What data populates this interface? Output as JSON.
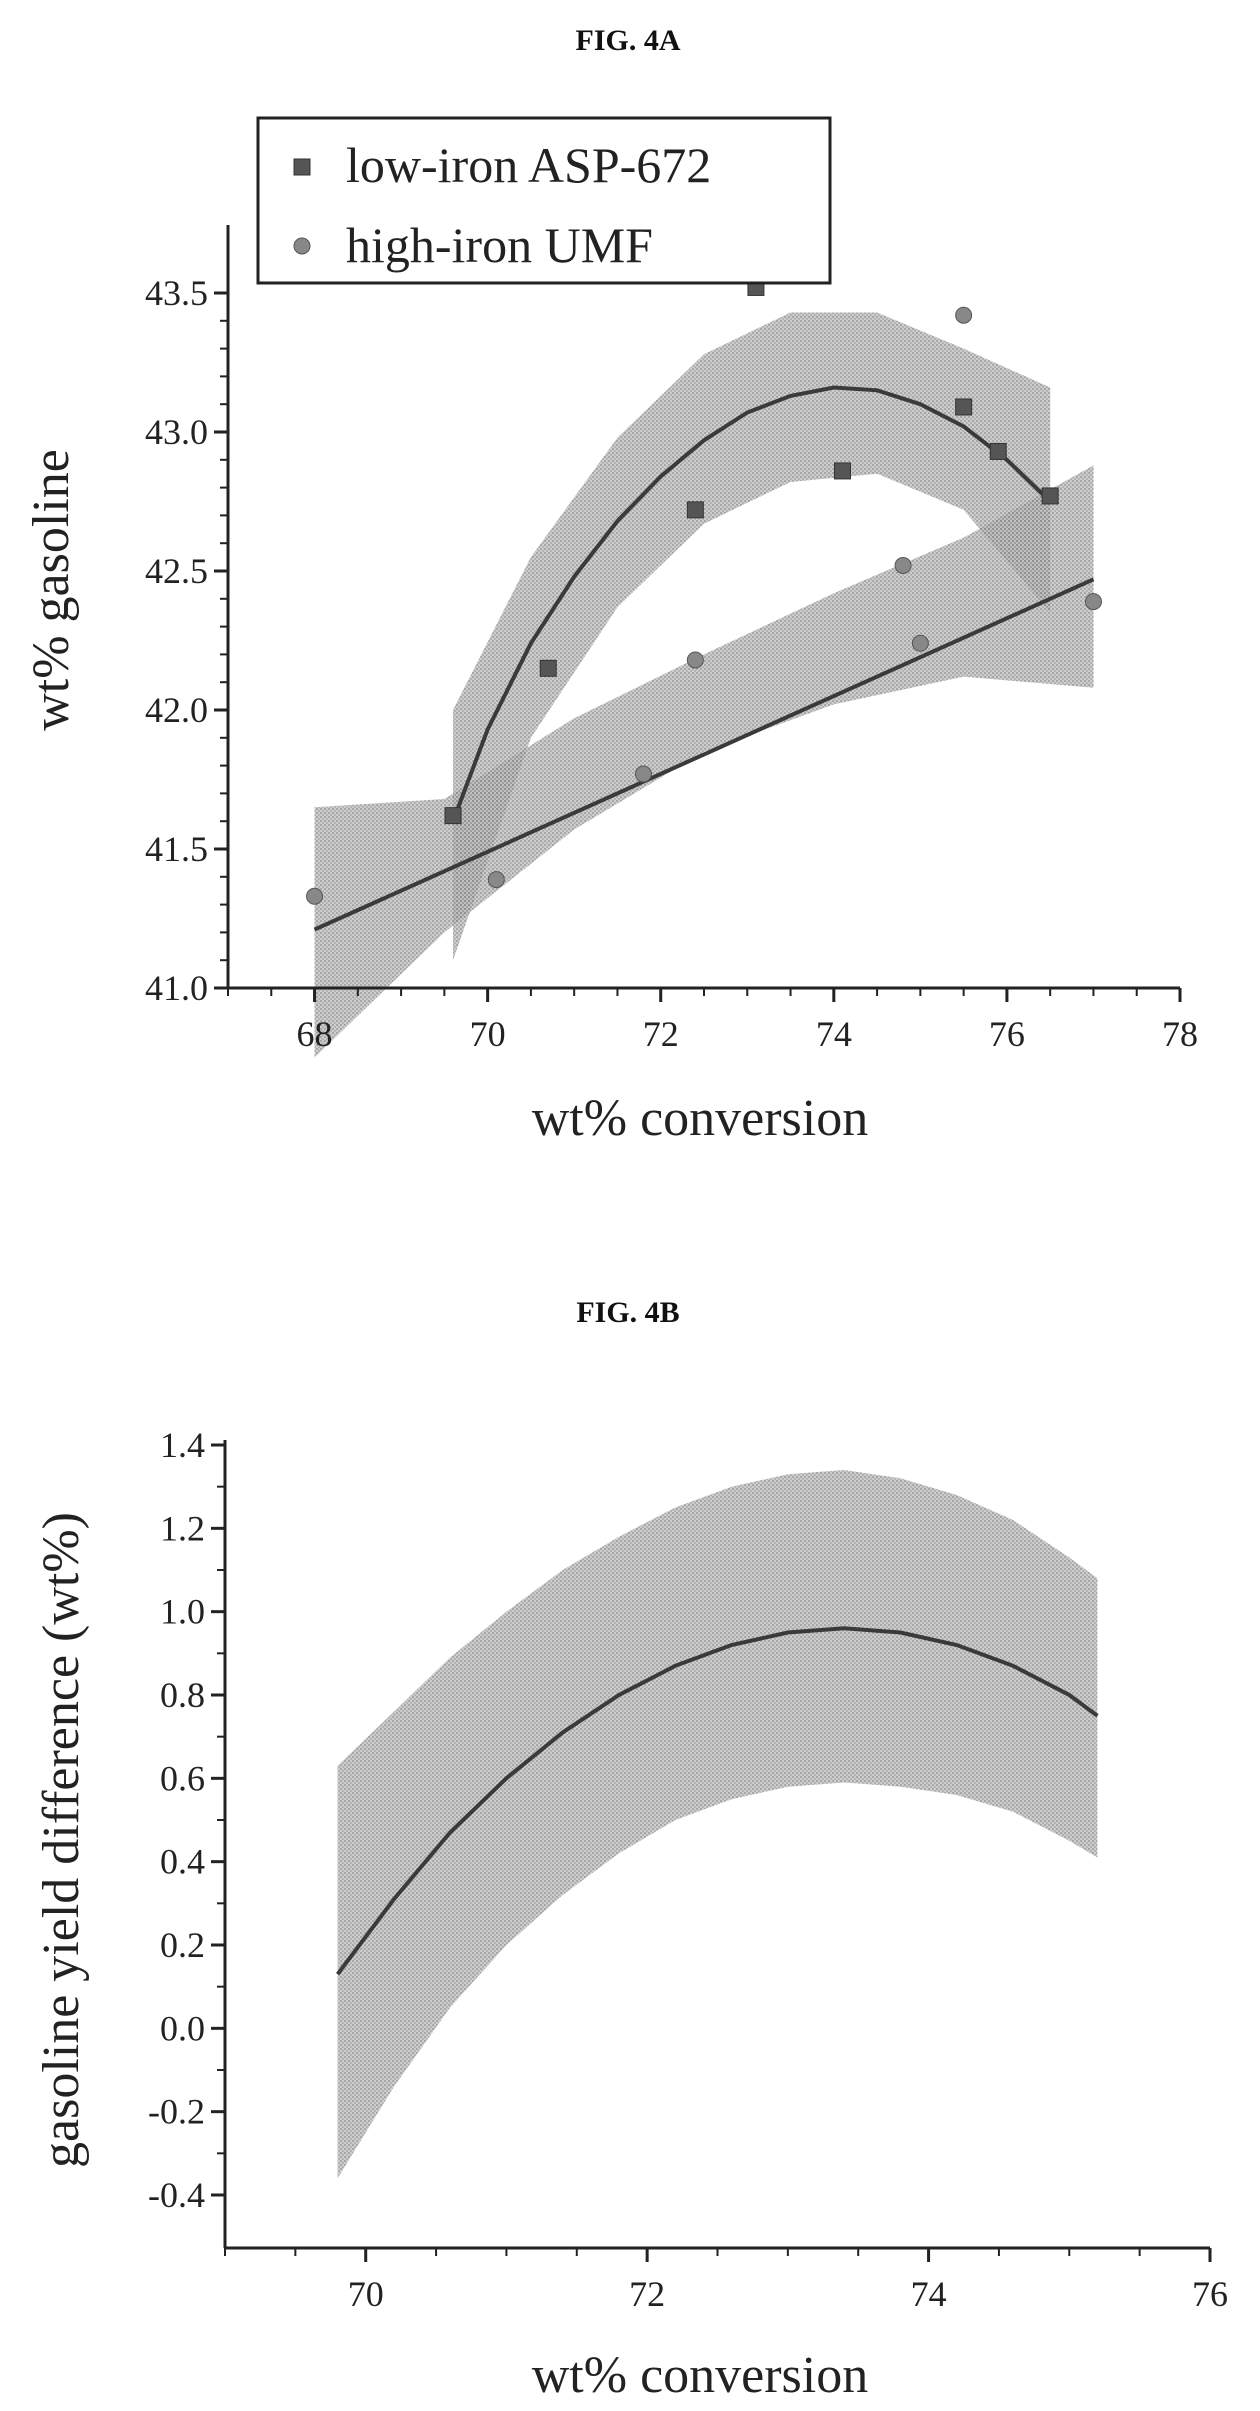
{
  "chart_data": [
    {
      "type": "scatter",
      "title": "FIG. 4A",
      "xlabel": "wt% conversion",
      "ylabel": "wt% gasoline",
      "xlim": [
        67,
        78
      ],
      "ylim": [
        41.0,
        43.75
      ],
      "xticks": [
        "68",
        "70",
        "72",
        "74",
        "76",
        "78"
      ],
      "yticks": [
        "41.0",
        "41.5",
        "42.0",
        "42.5",
        "43.0",
        "43.5"
      ],
      "legend": {
        "placement": "top-left"
      },
      "series": [
        {
          "name": "low-iron ASP-672",
          "marker": "square",
          "points": [
            [
              69.6,
              41.62
            ],
            [
              70.7,
              42.15
            ],
            [
              72.4,
              42.72
            ],
            [
              73.1,
              43.52
            ],
            [
              74.1,
              42.86
            ],
            [
              75.5,
              43.09
            ],
            [
              75.9,
              42.93
            ],
            [
              76.5,
              42.77
            ]
          ],
          "fit": "quadratic",
          "fit_curve": [
            [
              69.6,
              41.6
            ],
            [
              70.0,
              41.93
            ],
            [
              70.5,
              42.24
            ],
            [
              71.0,
              42.48
            ],
            [
              71.5,
              42.68
            ],
            [
              72.0,
              42.84
            ],
            [
              72.5,
              42.97
            ],
            [
              73.0,
              43.07
            ],
            [
              73.5,
              43.13
            ],
            [
              74.0,
              43.16
            ],
            [
              74.5,
              43.15
            ],
            [
              75.0,
              43.1
            ],
            [
              75.5,
              43.02
            ],
            [
              76.0,
              42.9
            ],
            [
              76.5,
              42.75
            ]
          ],
          "band_upper": [
            [
              69.6,
              42.0
            ],
            [
              70.5,
              42.55
            ],
            [
              71.5,
              42.98
            ],
            [
              72.5,
              43.28
            ],
            [
              73.5,
              43.43
            ],
            [
              74.5,
              43.43
            ],
            [
              75.5,
              43.3
            ],
            [
              76.5,
              43.16
            ]
          ],
          "band_lower": [
            [
              69.6,
              41.1
            ],
            [
              70.5,
              41.9
            ],
            [
              71.5,
              42.37
            ],
            [
              72.5,
              42.67
            ],
            [
              73.5,
              42.82
            ],
            [
              74.5,
              42.85
            ],
            [
              75.5,
              42.72
            ],
            [
              76.5,
              42.35
            ]
          ]
        },
        {
          "name": "high-iron UMF",
          "marker": "circle",
          "points": [
            [
              68.0,
              41.33
            ],
            [
              70.1,
              41.39
            ],
            [
              71.8,
              41.77
            ],
            [
              72.4,
              42.18
            ],
            [
              74.8,
              42.52
            ],
            [
              75.0,
              42.24
            ],
            [
              75.5,
              43.42
            ],
            [
              77.0,
              42.39
            ]
          ],
          "fit": "linear",
          "fit_curve": [
            [
              68.0,
              41.21
            ],
            [
              77.0,
              42.47
            ]
          ],
          "band_upper": [
            [
              68.0,
              41.65
            ],
            [
              69.5,
              41.68
            ],
            [
              71.0,
              41.97
            ],
            [
              72.5,
              42.2
            ],
            [
              74.0,
              42.42
            ],
            [
              75.5,
              42.62
            ],
            [
              77.0,
              42.88
            ]
          ],
          "band_lower": [
            [
              68.0,
              40.75
            ],
            [
              69.5,
              41.2
            ],
            [
              71.0,
              41.57
            ],
            [
              72.5,
              41.85
            ],
            [
              74.0,
              42.02
            ],
            [
              75.5,
              42.12
            ],
            [
              77.0,
              42.08
            ]
          ]
        }
      ]
    },
    {
      "type": "line",
      "title": "FIG. 4B",
      "xlabel": "wt% conversion",
      "ylabel": "gasoline yield difference (wt%)",
      "xlim": [
        69,
        76
      ],
      "ylim": [
        -0.5,
        1.4
      ],
      "xticks": [
        "70",
        "72",
        "74",
        "76"
      ],
      "yticks": [
        "-0.4",
        "-0.2",
        "0.0",
        "0.2",
        "0.4",
        "0.6",
        "0.8",
        "1.0",
        "1.2",
        "1.4"
      ],
      "series": [
        {
          "curve": [
            [
              69.8,
              0.13
            ],
            [
              70.2,
              0.31
            ],
            [
              70.6,
              0.47
            ],
            [
              71.0,
              0.6
            ],
            [
              71.4,
              0.71
            ],
            [
              71.8,
              0.8
            ],
            [
              72.2,
              0.87
            ],
            [
              72.6,
              0.92
            ],
            [
              73.0,
              0.95
            ],
            [
              73.4,
              0.96
            ],
            [
              73.8,
              0.95
            ],
            [
              74.2,
              0.92
            ],
            [
              74.6,
              0.87
            ],
            [
              75.0,
              0.8
            ],
            [
              75.2,
              0.75
            ]
          ],
          "band_upper": [
            [
              69.8,
              0.63
            ],
            [
              70.2,
              0.76
            ],
            [
              70.6,
              0.89
            ],
            [
              71.0,
              1.0
            ],
            [
              71.4,
              1.1
            ],
            [
              71.8,
              1.18
            ],
            [
              72.2,
              1.25
            ],
            [
              72.6,
              1.3
            ],
            [
              73.0,
              1.33
            ],
            [
              73.4,
              1.34
            ],
            [
              73.8,
              1.32
            ],
            [
              74.2,
              1.28
            ],
            [
              74.6,
              1.22
            ],
            [
              75.0,
              1.13
            ],
            [
              75.2,
              1.08
            ]
          ],
          "band_lower": [
            [
              69.8,
              -0.36
            ],
            [
              70.2,
              -0.14
            ],
            [
              70.6,
              0.05
            ],
            [
              71.0,
              0.2
            ],
            [
              71.4,
              0.32
            ],
            [
              71.8,
              0.42
            ],
            [
              72.2,
              0.5
            ],
            [
              72.6,
              0.55
            ],
            [
              73.0,
              0.58
            ],
            [
              73.4,
              0.59
            ],
            [
              73.8,
              0.58
            ],
            [
              74.2,
              0.56
            ],
            [
              74.6,
              0.52
            ],
            [
              75.0,
              0.45
            ],
            [
              75.2,
              0.41
            ]
          ]
        }
      ]
    }
  ]
}
